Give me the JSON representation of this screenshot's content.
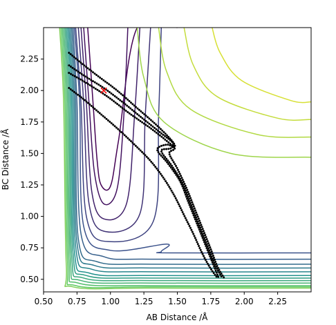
{
  "chart_data": {
    "type": "contour",
    "xlabel": "AB Distance /Å",
    "ylabel": "BC Distance /Å",
    "xlim": [
      0.5,
      2.5
    ],
    "ylim": [
      0.4,
      2.5
    ],
    "xticks": [
      "0.50",
      "0.75",
      "1.00",
      "1.25",
      "1.50",
      "1.75",
      "2.00",
      "2.25"
    ],
    "yticks": [
      "0.50",
      "0.75",
      "1.00",
      "1.25",
      "1.50",
      "1.75",
      "2.00",
      "2.25"
    ],
    "grid": false,
    "legend": "none",
    "colormap": "viridis",
    "contours": [
      {
        "level": 0.0,
        "x": [
          0.83,
          0.87,
          0.9,
          0.93,
          1.0,
          1.06,
          1.2,
          1.5
        ],
        "y": [
          2.5,
          1.9,
          1.45,
          1.25,
          1.24,
          1.6,
          2.5,
          2.5
        ]
      },
      {
        "level": 0.05,
        "x": [
          0.8,
          0.84,
          0.88,
          0.95,
          1.05,
          1.1,
          1.13
        ],
        "y": [
          2.5,
          1.9,
          1.35,
          1.1,
          1.22,
          1.8,
          2.5
        ]
      },
      {
        "level": 0.1,
        "x": [
          0.78,
          0.82,
          0.86,
          0.95,
          1.12,
          1.18,
          1.22
        ],
        "y": [
          2.5,
          1.9,
          1.2,
          0.98,
          1.1,
          1.8,
          2.5
        ]
      },
      {
        "level": 0.15,
        "x": [
          0.76,
          0.8,
          0.84,
          0.96,
          1.22,
          1.26,
          1.3
        ],
        "y": [
          2.5,
          1.9,
          1.1,
          0.88,
          1.02,
          1.8,
          2.5
        ]
      },
      {
        "level": 0.2,
        "x": [
          0.74,
          0.78,
          0.82,
          0.98,
          1.32,
          1.36,
          1.38
        ],
        "y": [
          2.5,
          1.9,
          1.0,
          0.8,
          0.96,
          1.8,
          2.5
        ]
      },
      {
        "level": 0.25,
        "x": [
          0.73,
          0.77,
          0.8,
          1.0,
          1.42,
          1.38,
          1.45,
          2.5
        ],
        "y": [
          2.5,
          1.9,
          0.92,
          0.73,
          0.78,
          0.72,
          0.71,
          0.71
        ]
      },
      {
        "level": 0.3,
        "x": [
          0.72,
          0.75,
          0.78,
          0.95,
          1.3,
          2.5
        ],
        "y": [
          2.5,
          1.9,
          0.86,
          0.68,
          0.66,
          0.66
        ]
      },
      {
        "level": 0.35,
        "x": [
          0.71,
          0.74,
          0.76,
          0.9,
          1.3,
          2.5
        ],
        "y": [
          2.5,
          1.9,
          0.82,
          0.64,
          0.62,
          0.62
        ]
      },
      {
        "level": 0.4,
        "x": [
          0.7,
          0.73,
          0.75,
          0.88,
          1.3,
          2.5
        ],
        "y": [
          2.5,
          1.9,
          0.79,
          0.61,
          0.59,
          0.59
        ]
      },
      {
        "level": 0.45,
        "x": [
          0.69,
          0.72,
          0.74,
          0.86,
          1.3,
          2.5
        ],
        "y": [
          2.5,
          1.9,
          0.76,
          0.58,
          0.56,
          0.56
        ]
      },
      {
        "level": 0.5,
        "x": [
          0.68,
          0.71,
          0.73,
          0.84,
          1.3,
          2.5
        ],
        "y": [
          2.5,
          1.9,
          0.73,
          0.55,
          0.53,
          0.53
        ]
      },
      {
        "level": 0.55,
        "x": [
          0.67,
          0.7,
          0.72,
          0.82,
          1.3,
          2.5
        ],
        "y": [
          2.5,
          1.9,
          0.71,
          0.53,
          0.51,
          0.51
        ]
      },
      {
        "level": 0.6,
        "x": [
          0.66,
          0.69,
          0.71,
          0.8,
          1.3,
          2.5
        ],
        "y": [
          2.5,
          1.9,
          0.69,
          0.51,
          0.49,
          0.49
        ]
      },
      {
        "level": 0.65,
        "x": [
          0.65,
          0.68,
          0.7,
          0.78,
          1.3,
          2.5
        ],
        "y": [
          2.5,
          1.9,
          0.67,
          0.49,
          0.47,
          0.47
        ]
      },
      {
        "level": 0.7,
        "x": [
          0.64,
          0.67,
          0.69,
          0.76,
          1.3,
          2.5
        ],
        "y": [
          2.5,
          1.9,
          0.65,
          0.47,
          0.45,
          0.45
        ]
      },
      {
        "level": 0.75,
        "x": [
          0.63,
          0.66,
          0.68,
          0.74,
          1.3,
          2.5
        ],
        "y": [
          2.5,
          1.9,
          0.63,
          0.45,
          0.44,
          0.44
        ]
      },
      {
        "level": 0.8,
        "x": [
          0.62,
          0.65,
          0.67,
          0.72,
          1.3,
          2.5
        ],
        "y": [
          2.5,
          1.9,
          0.61,
          0.44,
          0.43,
          0.43
        ]
      },
      {
        "level": 0.85,
        "x": [
          1.2,
          1.25,
          1.4,
          1.9,
          2.5
        ],
        "y": [
          2.5,
          2.1,
          1.75,
          1.5,
          1.47
        ]
      },
      {
        "level": 0.88,
        "x": [
          1.36,
          1.42,
          1.6,
          2.1,
          2.5
        ],
        "y": [
          2.5,
          2.15,
          1.85,
          1.65,
          1.63
        ]
      },
      {
        "level": 0.91,
        "x": [
          1.55,
          1.62,
          1.8,
          2.25,
          2.5
        ],
        "y": [
          2.5,
          2.2,
          1.95,
          1.78,
          1.77
        ]
      },
      {
        "level": 0.94,
        "x": [
          1.76,
          1.82,
          1.98,
          2.35,
          2.5
        ],
        "y": [
          2.5,
          2.3,
          2.08,
          1.92,
          1.91
        ]
      }
    ],
    "trajectory": [
      {
        "x": [
          0.69,
          0.78,
          0.9,
          1.05,
          1.2,
          1.35,
          1.46,
          1.48,
          1.42,
          1.35,
          1.43,
          1.52,
          1.58,
          1.64,
          1.7,
          1.76,
          1.81
        ],
        "y": [
          2.3,
          2.22,
          2.12,
          2.0,
          1.86,
          1.72,
          1.6,
          1.55,
          1.57,
          1.53,
          1.42,
          1.28,
          1.12,
          0.96,
          0.8,
          0.64,
          0.51
        ]
      },
      {
        "x": [
          0.69,
          0.8,
          0.95,
          1.1,
          1.25,
          1.38,
          1.47,
          1.45,
          1.38,
          1.46,
          1.54,
          1.6,
          1.66,
          1.72,
          1.78,
          1.83
        ],
        "y": [
          2.2,
          2.12,
          2.02,
          1.9,
          1.77,
          1.66,
          1.58,
          1.54,
          1.52,
          1.4,
          1.26,
          1.1,
          0.94,
          0.78,
          0.62,
          0.52
        ]
      },
      {
        "x": [
          0.69,
          0.82,
          0.98,
          1.14,
          1.3,
          1.42,
          1.48,
          1.44,
          1.5,
          1.57,
          1.63,
          1.69,
          1.75,
          1.8,
          1.85
        ],
        "y": [
          2.14,
          2.06,
          1.95,
          1.82,
          1.7,
          1.6,
          1.54,
          1.5,
          1.38,
          1.22,
          1.06,
          0.9,
          0.74,
          0.6,
          0.51
        ]
      },
      {
        "x": [
          0.69,
          0.8,
          0.92,
          1.05,
          1.18,
          1.3,
          1.4,
          1.48,
          1.55,
          1.62,
          1.68,
          1.74,
          1.8
        ],
        "y": [
          2.02,
          1.93,
          1.82,
          1.7,
          1.57,
          1.44,
          1.3,
          1.16,
          1.01,
          0.86,
          0.72,
          0.6,
          0.51
        ]
      }
    ],
    "marker": {
      "x": 0.95,
      "y": 2.0,
      "color": "#ff0000",
      "symbol": "x"
    }
  }
}
